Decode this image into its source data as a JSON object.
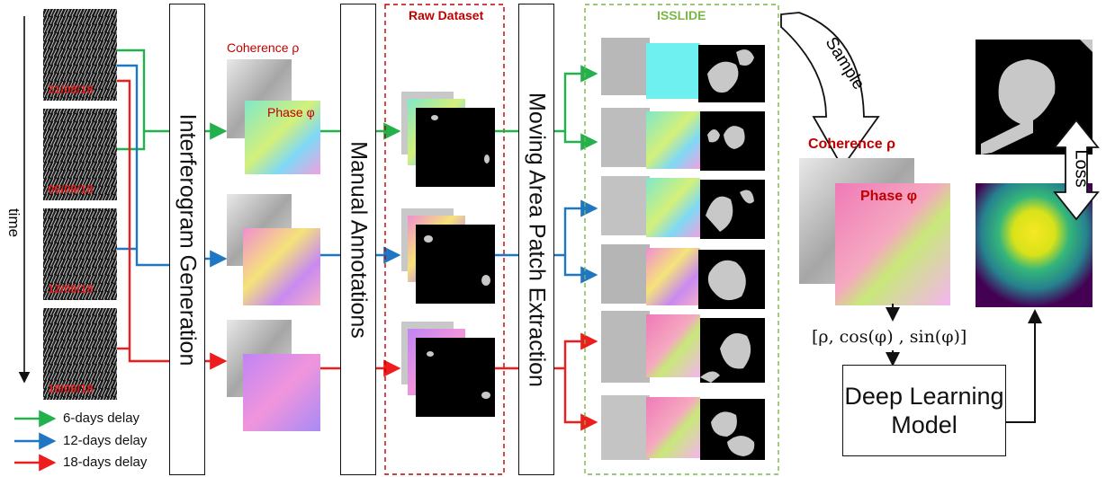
{
  "time_label": "time",
  "dates": [
    "31/08/18",
    "06/09/18",
    "12/09/18",
    "18/09/18"
  ],
  "steps": {
    "interferogram": "Interferogram Generation",
    "manual": "Manual Annotations",
    "extraction": "Moving Area Patch Extraction"
  },
  "raw_dataset": "Raw Dataset",
  "isslide": "ISSLIDE",
  "coherence_small": "Coherence ρ",
  "phase_small": "Phase φ",
  "coherence_big": "Coherence ρ",
  "phase_big": "Phase φ",
  "sample": "Sample",
  "loss": "Loss",
  "formula": "[ρ, cos(φ) , sin(φ)]",
  "model": {
    "line1": "Deep Learning",
    "line2": "Model"
  },
  "legend": [
    {
      "label": "6-days delay",
      "color": "#22b14c"
    },
    {
      "label": "12-days delay",
      "color": "#1f77c4"
    },
    {
      "label": "18-days delay",
      "color": "#ee1c1c"
    }
  ]
}
